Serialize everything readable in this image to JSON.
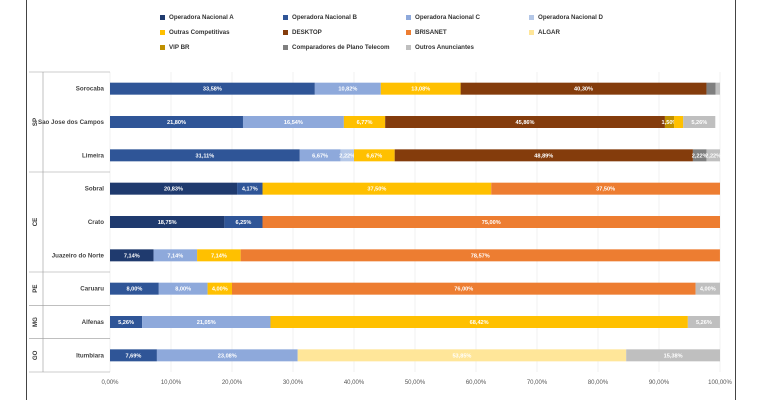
{
  "chart_data": {
    "type": "bar",
    "orientation": "horizontal-stacked",
    "xlim": [
      0,
      100
    ],
    "xticks": [
      "0,00%",
      "10,00%",
      "20,00%",
      "30,00%",
      "40,00%",
      "50,00%",
      "60,00%",
      "70,00%",
      "80,00%",
      "90,00%",
      "100,00%"
    ],
    "legend_position": "top",
    "series_names": [
      "Operadora Nacional A",
      "Operadora Nacional B",
      "Operadora Nacional C",
      "Operadora Nacional D",
      "Outras Competitivas",
      "DESKTOP",
      "BRISANET",
      "ALGAR",
      "VIP BR",
      "Comparadores de Plano Telecom",
      "Outros Anunciantes"
    ],
    "series_colors": [
      "#1f3a6e",
      "#2f5597",
      "#8ea9db",
      "#b4c7e7",
      "#ffc000",
      "#843c0c",
      "#ed7d31",
      "#ffe699",
      "#bf9000",
      "#7f7f7f",
      "#bfbfbf"
    ],
    "groups": [
      {
        "name": "SP",
        "categories": [
          "Sorocaba",
          "Sao Jose dos Campos",
          "Limeira"
        ]
      },
      {
        "name": "CE",
        "categories": [
          "Sobral",
          "Crato",
          "Juazeiro do Norte"
        ]
      },
      {
        "name": "PE",
        "categories": [
          "Caruaru"
        ]
      },
      {
        "name": "MG",
        "categories": [
          "Alfenas"
        ]
      },
      {
        "name": "GO",
        "categories": [
          "Itumbiara"
        ]
      }
    ],
    "rows": [
      {
        "category": "Sorocaba",
        "segments": [
          {
            "series": 1,
            "value": 33.58,
            "label": "33,58%"
          },
          {
            "series": 2,
            "value": 10.82,
            "label": "10,82%"
          },
          {
            "series": 4,
            "value": 13.08,
            "label": "13,08%"
          },
          {
            "series": 5,
            "value": 40.3,
            "label": "40,30%"
          },
          {
            "series": 9,
            "value": 1.5,
            "label": ""
          },
          {
            "series": 10,
            "value": 0.72,
            "label": ""
          }
        ]
      },
      {
        "category": "Sao Jose dos Campos",
        "segments": [
          {
            "series": 1,
            "value": 21.8,
            "label": "21,80%"
          },
          {
            "series": 2,
            "value": 16.54,
            "label": "16,54%"
          },
          {
            "series": 4,
            "value": 6.77,
            "label": "6,77%"
          },
          {
            "series": 5,
            "value": 45.86,
            "label": "45,86%"
          },
          {
            "series": 8,
            "value": 1.5,
            "label": "1,50%"
          },
          {
            "series": 4,
            "value": 1.5,
            "label": ""
          },
          {
            "series": 10,
            "value": 5.26,
            "label": "5,26%"
          }
        ]
      },
      {
        "category": "Limeira",
        "segments": [
          {
            "series": 1,
            "value": 31.11,
            "label": "31,11%"
          },
          {
            "series": 2,
            "value": 6.67,
            "label": "6,67%"
          },
          {
            "series": 3,
            "value": 2.22,
            "label": "2,22%"
          },
          {
            "series": 4,
            "value": 6.67,
            "label": "6,67%"
          },
          {
            "series": 5,
            "value": 48.89,
            "label": "48,89%"
          },
          {
            "series": 9,
            "value": 2.22,
            "label": "2,22%"
          },
          {
            "series": 10,
            "value": 2.22,
            "label": "2,22%"
          }
        ]
      },
      {
        "category": "Sobral",
        "segments": [
          {
            "series": 0,
            "value": 20.83,
            "label": "20,83%"
          },
          {
            "series": 1,
            "value": 4.17,
            "label": "4,17%"
          },
          {
            "series": 4,
            "value": 37.5,
            "label": "37,50%"
          },
          {
            "series": 6,
            "value": 37.5,
            "label": "37,50%"
          }
        ]
      },
      {
        "category": "Crato",
        "segments": [
          {
            "series": 0,
            "value": 18.75,
            "label": "18,75%"
          },
          {
            "series": 1,
            "value": 6.25,
            "label": "6,25%"
          },
          {
            "series": 6,
            "value": 75.0,
            "label": "75,00%"
          }
        ]
      },
      {
        "category": "Juazeiro do Norte",
        "segments": [
          {
            "series": 0,
            "value": 7.14,
            "label": "7,14%"
          },
          {
            "series": 2,
            "value": 7.14,
            "label": "7,14%"
          },
          {
            "series": 4,
            "value": 7.14,
            "label": "7,14%"
          },
          {
            "series": 6,
            "value": 78.57,
            "label": "78,57%"
          }
        ]
      },
      {
        "category": "Caruaru",
        "segments": [
          {
            "series": 1,
            "value": 8.0,
            "label": "8,00%"
          },
          {
            "series": 2,
            "value": 8.0,
            "label": "8,00%"
          },
          {
            "series": 4,
            "value": 4.0,
            "label": "4,00%"
          },
          {
            "series": 6,
            "value": 76.0,
            "label": "76,00%"
          },
          {
            "series": 10,
            "value": 4.0,
            "label": "4,00%"
          }
        ]
      },
      {
        "category": "Alfenas",
        "segments": [
          {
            "series": 1,
            "value": 5.26,
            "label": "5,26%"
          },
          {
            "series": 2,
            "value": 21.05,
            "label": "21,05%"
          },
          {
            "series": 4,
            "value": 68.42,
            "label": "68,42%"
          },
          {
            "series": 10,
            "value": 5.26,
            "label": "5,26%"
          }
        ]
      },
      {
        "category": "Itumbiara",
        "segments": [
          {
            "series": 1,
            "value": 7.69,
            "label": "7,69%"
          },
          {
            "series": 2,
            "value": 23.08,
            "label": "23,08%"
          },
          {
            "series": 7,
            "value": 53.85,
            "label": "53,85%"
          },
          {
            "series": 10,
            "value": 15.38,
            "label": "15,38%"
          }
        ]
      }
    ]
  }
}
